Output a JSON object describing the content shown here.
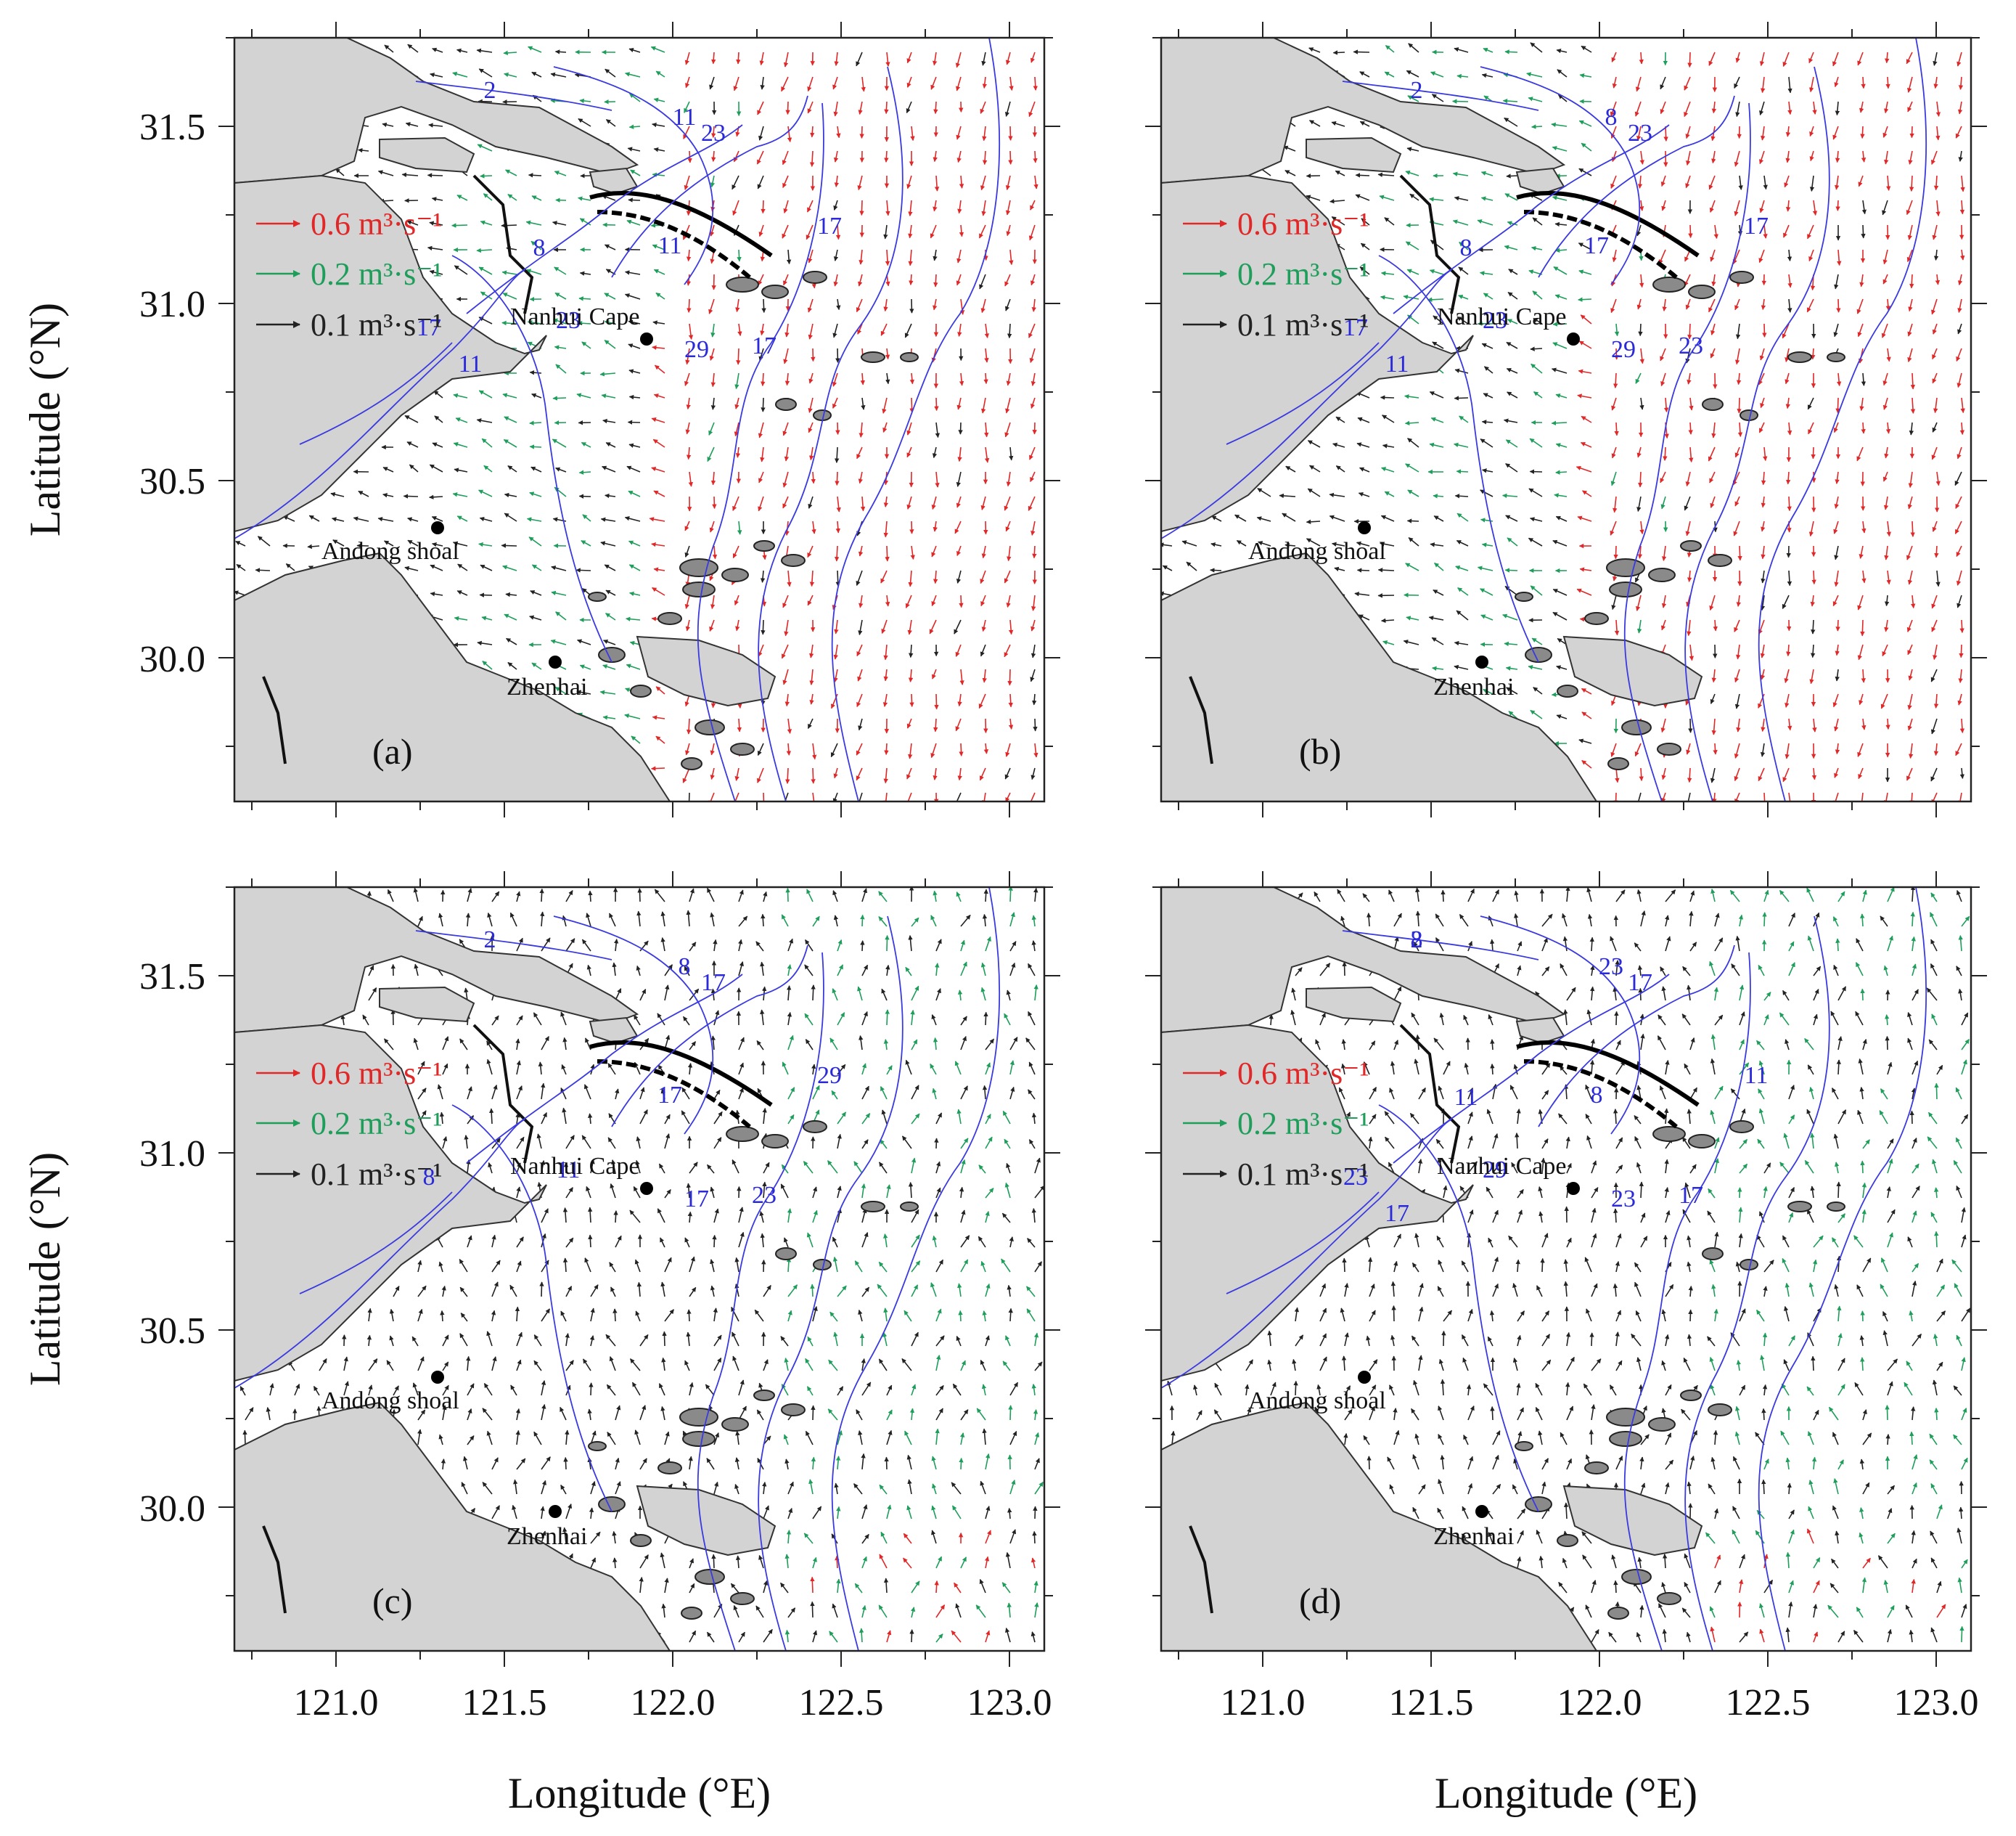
{
  "axes": {
    "y_title": "Latitude (°N)",
    "x_title": "Longitude (°E)",
    "y_ticks": [
      "31.5",
      "31.0",
      "30.5",
      "30.0"
    ],
    "x_ticks": [
      "121.0",
      "121.5",
      "122.0",
      "122.5",
      "123.0"
    ]
  },
  "legend": [
    {
      "text": "0.6 m³·s⁻¹",
      "color": "#e02828"
    },
    {
      "text": "0.2 m³·s⁻¹",
      "color": "#1e9e5a"
    },
    {
      "text": "0.1 m³·s⁻¹",
      "color": "#222222"
    }
  ],
  "places": {
    "nanhui": "Nanhui Cape",
    "andong": "Andong shoal",
    "zhenhai": "Zhenhai"
  },
  "panels": [
    {
      "label": "(a)",
      "contours": [
        "2",
        "11",
        "23",
        "11",
        "17",
        "17",
        "29",
        "23",
        "17",
        "11",
        "8"
      ]
    },
    {
      "label": "(b)",
      "contours": [
        "2",
        "8",
        "23",
        "17",
        "17",
        "23",
        "29",
        "23",
        "17",
        "11",
        "8"
      ]
    },
    {
      "label": "(c)",
      "contours": [
        "2",
        "8",
        "17",
        "17",
        "29",
        "23",
        "17",
        "11",
        "8"
      ]
    },
    {
      "label": "(d)",
      "contours": [
        "2",
        "23",
        "17",
        "8",
        "11",
        "17",
        "23",
        "29",
        "23",
        "17",
        "11",
        "8"
      ]
    }
  ],
  "colors": {
    "land": "#d3d3d3",
    "contour": "#3a3ae0",
    "arrow_strong": "#e02828",
    "arrow_mid": "#1e9e5a",
    "arrow_weak": "#222222"
  }
}
